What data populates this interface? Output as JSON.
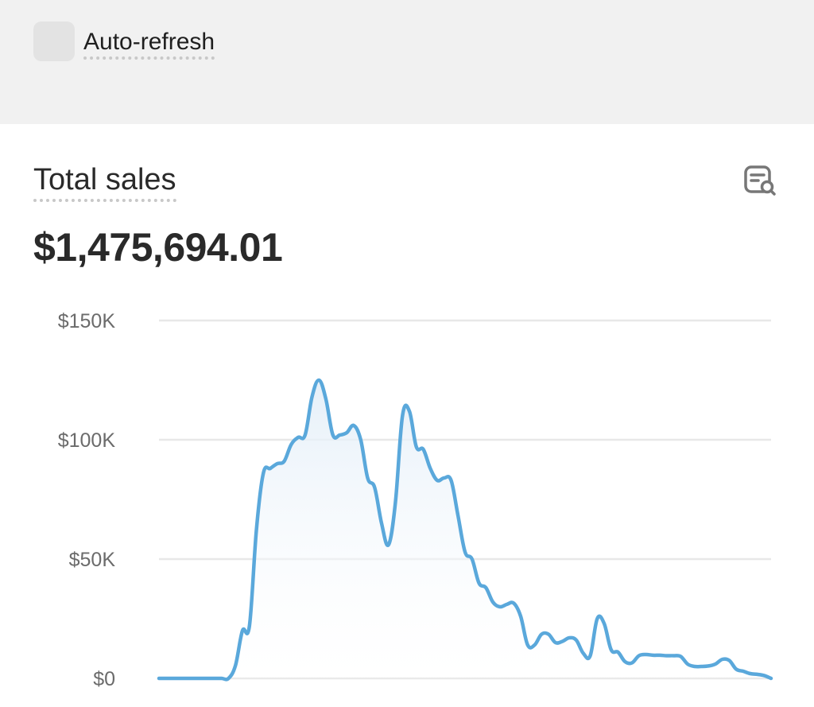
{
  "toolbar": {
    "auto_refresh_label": "Auto-refresh",
    "auto_refresh_checked": false
  },
  "card": {
    "title": "Total sales",
    "total_value": "$1,475,694.01",
    "explore_icon": "explore-data-icon"
  },
  "colors": {
    "line": "#5aa8db",
    "fill_top": "#e3eef8",
    "grid": "#e8e8e8",
    "topbar_bg": "#f1f1f1"
  },
  "chart_data": {
    "type": "area",
    "title": "Total sales",
    "xlabel": "",
    "ylabel": "",
    "ylim": [
      0,
      150000
    ],
    "yticks": [
      {
        "value": 150000,
        "label": "$150K"
      },
      {
        "value": 100000,
        "label": "$100K"
      },
      {
        "value": 50000,
        "label": "$50K"
      },
      {
        "value": 0,
        "label": "$0"
      }
    ],
    "grid": true,
    "legend": "none",
    "series": [
      {
        "values": [
          0,
          0,
          0,
          0,
          0,
          0,
          0,
          0,
          0,
          0,
          0,
          5500,
          20000,
          22000,
          62000,
          86000,
          88000,
          90000,
          91000,
          98000,
          101000,
          102000,
          118000,
          125000,
          117000,
          102000,
          102000,
          103000,
          106000,
          100000,
          84000,
          80000,
          65000,
          56000,
          74000,
          110000,
          112000,
          97000,
          96000,
          88000,
          83000,
          84000,
          83000,
          68000,
          53000,
          50000,
          40000,
          38000,
          32000,
          30000,
          31000,
          31500,
          26000,
          14000,
          14000,
          18500,
          18500,
          15000,
          15500,
          17000,
          16000,
          10500,
          9500,
          25000,
          23000,
          12000,
          11000,
          7000,
          6500,
          9500,
          10000,
          9700,
          9700,
          9500,
          9500,
          9200,
          6000,
          5000,
          5000,
          5200,
          6000,
          8000,
          7500,
          3800,
          3000,
          2000,
          1700,
          1200,
          0
        ]
      }
    ]
  }
}
